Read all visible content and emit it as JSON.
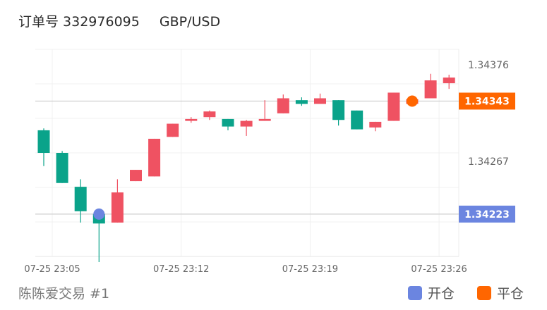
{
  "header": {
    "order_label": "订单号 332976095",
    "pair": "GBP/USD"
  },
  "footer": {
    "account": "陈陈爱交易 #1"
  },
  "legend": [
    {
      "label": "开仓",
      "color": "#6b85e0"
    },
    {
      "label": "平仓",
      "color": "#ff6600"
    }
  ],
  "colors": {
    "up": "#ef5262",
    "down": "#0aa38a",
    "open": "#6b85e0",
    "close": "#ff6600"
  },
  "chart_data": {
    "type": "candlestick",
    "ylim": [
      1.34178,
      1.34398
    ],
    "y_ticks": [
      "1.34376",
      "1.34267"
    ],
    "x_ticks": [
      "07-25 23:05",
      "07-25 23:12",
      "07-25 23:19",
      "07-25 23:26"
    ],
    "x_tick_index": [
      0,
      7,
      14,
      21
    ],
    "open_price": "1.34223",
    "close_price": "1.34343",
    "open_index": 3,
    "close_index": 20,
    "candles": [
      [
        1.34312,
        1.34314,
        1.34274,
        1.34288
      ],
      [
        1.34288,
        1.3429,
        1.34256,
        1.34256
      ],
      [
        1.34252,
        1.3426,
        1.34214,
        1.34226
      ],
      [
        1.34223,
        1.34226,
        1.34172,
        1.34213
      ],
      [
        1.34214,
        1.3426,
        1.34214,
        1.34246
      ],
      [
        1.34258,
        1.3427,
        1.34258,
        1.3427
      ],
      [
        1.34263,
        1.34303,
        1.34263,
        1.34303
      ],
      [
        1.34305,
        1.34319,
        1.34305,
        1.34319
      ],
      [
        1.34322,
        1.34326,
        1.3432,
        1.34324
      ],
      [
        1.34326,
        1.34333,
        1.34323,
        1.34332
      ],
      [
        1.34324,
        1.34324,
        1.34312,
        1.34316
      ],
      [
        1.34316,
        1.34323,
        1.34306,
        1.34322
      ],
      [
        1.34322,
        1.34344,
        1.34322,
        1.34324
      ],
      [
        1.3433,
        1.3435,
        1.3433,
        1.34346
      ],
      [
        1.34344,
        1.34347,
        1.34338,
        1.3434
      ],
      [
        1.3434,
        1.34351,
        1.3434,
        1.34346
      ],
      [
        1.34344,
        1.34344,
        1.34317,
        1.34323
      ],
      [
        1.34333,
        1.34333,
        1.34313,
        1.34313
      ],
      [
        1.34315,
        1.34321,
        1.34311,
        1.34321
      ],
      [
        1.34322,
        1.34352,
        1.34322,
        1.34352
      ],
      [
        1.3434,
        1.34345,
        1.3434,
        1.34345
      ],
      [
        1.34346,
        1.34372,
        1.34346,
        1.34365
      ],
      [
        1.34362,
        1.34371,
        1.34356,
        1.34368
      ]
    ]
  }
}
